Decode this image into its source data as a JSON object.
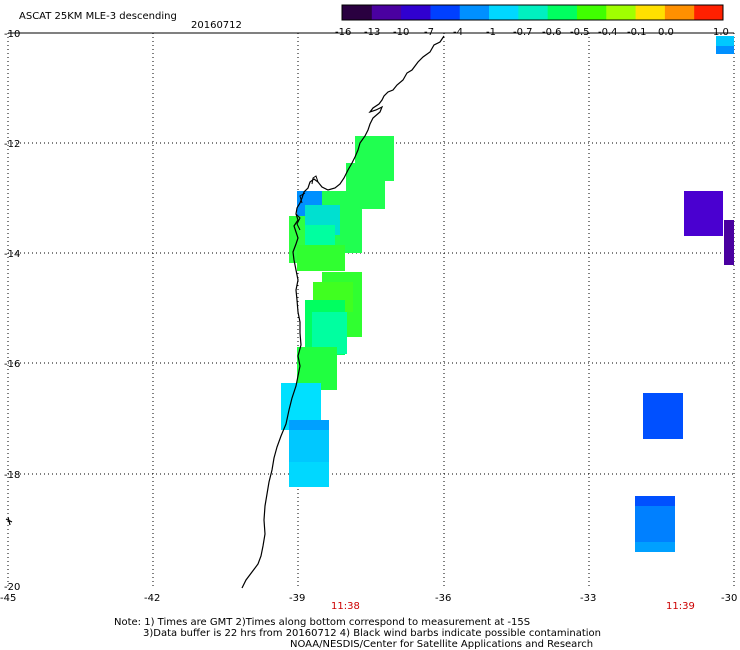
{
  "header": {
    "title": "ASCAT 25KM MLE-3 descending",
    "date": "20160712"
  },
  "colorbar": {
    "labels": [
      "-16",
      "-13",
      "-10",
      "-7",
      "-4",
      "-1",
      "-0.7",
      "-0.6",
      "-0.5",
      "-0.4",
      "-0.1",
      "0.0",
      "1.0"
    ],
    "colors": [
      "#2a0040",
      "#4a00a0",
      "#3000d0",
      "#0040ff",
      "#0090ff",
      "#00d8ff",
      "#00f0c0",
      "#00ff60",
      "#40ff00",
      "#a0ff00",
      "#ffe000",
      "#ff9000",
      "#ff2000"
    ]
  },
  "axes": {
    "lat_labels": [
      "-10",
      "-12",
      "-14",
      "-16",
      "-18",
      "-20"
    ],
    "lon_labels": [
      "-45",
      "-42",
      "-39",
      "-36",
      "-33",
      "-30"
    ],
    "time_labels": [
      "11:38",
      "11:39"
    ]
  },
  "notes": [
    "Note: 1) Times are GMT 2)Times along bottom correspond to measurement at -15S",
    "3)Data buffer is 22 hrs from 20160712 4) Black wind barbs indicate possible contamination",
    "NOAA/NESDIS/Center for Satellite Applications and Research"
  ],
  "colors": {
    "grid": "#000000",
    "time_label": "#cc0000"
  }
}
